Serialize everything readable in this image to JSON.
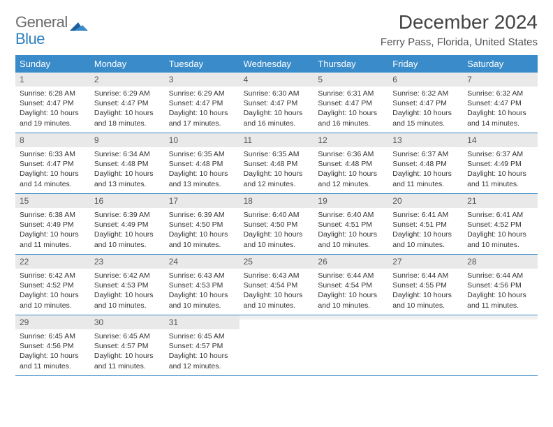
{
  "brand": {
    "line1": "General",
    "line2": "Blue",
    "line1_color": "#6b6b6b",
    "line2_color": "#2a7fbf"
  },
  "title": "December 2024",
  "location": "Ferry Pass, Florida, United States",
  "header_bg": "#3a8bc9",
  "header_text_color": "#ffffff",
  "daynum_bg": "#e9e9e9",
  "week_border_color": "#3a8bc9",
  "body_text_color": "#333333",
  "day_names": [
    "Sunday",
    "Monday",
    "Tuesday",
    "Wednesday",
    "Thursday",
    "Friday",
    "Saturday"
  ],
  "weeks": [
    [
      {
        "n": "1",
        "sr": "Sunrise: 6:28 AM",
        "ss": "Sunset: 4:47 PM",
        "d1": "Daylight: 10 hours",
        "d2": "and 19 minutes."
      },
      {
        "n": "2",
        "sr": "Sunrise: 6:29 AM",
        "ss": "Sunset: 4:47 PM",
        "d1": "Daylight: 10 hours",
        "d2": "and 18 minutes."
      },
      {
        "n": "3",
        "sr": "Sunrise: 6:29 AM",
        "ss": "Sunset: 4:47 PM",
        "d1": "Daylight: 10 hours",
        "d2": "and 17 minutes."
      },
      {
        "n": "4",
        "sr": "Sunrise: 6:30 AM",
        "ss": "Sunset: 4:47 PM",
        "d1": "Daylight: 10 hours",
        "d2": "and 16 minutes."
      },
      {
        "n": "5",
        "sr": "Sunrise: 6:31 AM",
        "ss": "Sunset: 4:47 PM",
        "d1": "Daylight: 10 hours",
        "d2": "and 16 minutes."
      },
      {
        "n": "6",
        "sr": "Sunrise: 6:32 AM",
        "ss": "Sunset: 4:47 PM",
        "d1": "Daylight: 10 hours",
        "d2": "and 15 minutes."
      },
      {
        "n": "7",
        "sr": "Sunrise: 6:32 AM",
        "ss": "Sunset: 4:47 PM",
        "d1": "Daylight: 10 hours",
        "d2": "and 14 minutes."
      }
    ],
    [
      {
        "n": "8",
        "sr": "Sunrise: 6:33 AM",
        "ss": "Sunset: 4:47 PM",
        "d1": "Daylight: 10 hours",
        "d2": "and 14 minutes."
      },
      {
        "n": "9",
        "sr": "Sunrise: 6:34 AM",
        "ss": "Sunset: 4:48 PM",
        "d1": "Daylight: 10 hours",
        "d2": "and 13 minutes."
      },
      {
        "n": "10",
        "sr": "Sunrise: 6:35 AM",
        "ss": "Sunset: 4:48 PM",
        "d1": "Daylight: 10 hours",
        "d2": "and 13 minutes."
      },
      {
        "n": "11",
        "sr": "Sunrise: 6:35 AM",
        "ss": "Sunset: 4:48 PM",
        "d1": "Daylight: 10 hours",
        "d2": "and 12 minutes."
      },
      {
        "n": "12",
        "sr": "Sunrise: 6:36 AM",
        "ss": "Sunset: 4:48 PM",
        "d1": "Daylight: 10 hours",
        "d2": "and 12 minutes."
      },
      {
        "n": "13",
        "sr": "Sunrise: 6:37 AM",
        "ss": "Sunset: 4:48 PM",
        "d1": "Daylight: 10 hours",
        "d2": "and 11 minutes."
      },
      {
        "n": "14",
        "sr": "Sunrise: 6:37 AM",
        "ss": "Sunset: 4:49 PM",
        "d1": "Daylight: 10 hours",
        "d2": "and 11 minutes."
      }
    ],
    [
      {
        "n": "15",
        "sr": "Sunrise: 6:38 AM",
        "ss": "Sunset: 4:49 PM",
        "d1": "Daylight: 10 hours",
        "d2": "and 11 minutes."
      },
      {
        "n": "16",
        "sr": "Sunrise: 6:39 AM",
        "ss": "Sunset: 4:49 PM",
        "d1": "Daylight: 10 hours",
        "d2": "and 10 minutes."
      },
      {
        "n": "17",
        "sr": "Sunrise: 6:39 AM",
        "ss": "Sunset: 4:50 PM",
        "d1": "Daylight: 10 hours",
        "d2": "and 10 minutes."
      },
      {
        "n": "18",
        "sr": "Sunrise: 6:40 AM",
        "ss": "Sunset: 4:50 PM",
        "d1": "Daylight: 10 hours",
        "d2": "and 10 minutes."
      },
      {
        "n": "19",
        "sr": "Sunrise: 6:40 AM",
        "ss": "Sunset: 4:51 PM",
        "d1": "Daylight: 10 hours",
        "d2": "and 10 minutes."
      },
      {
        "n": "20",
        "sr": "Sunrise: 6:41 AM",
        "ss": "Sunset: 4:51 PM",
        "d1": "Daylight: 10 hours",
        "d2": "and 10 minutes."
      },
      {
        "n": "21",
        "sr": "Sunrise: 6:41 AM",
        "ss": "Sunset: 4:52 PM",
        "d1": "Daylight: 10 hours",
        "d2": "and 10 minutes."
      }
    ],
    [
      {
        "n": "22",
        "sr": "Sunrise: 6:42 AM",
        "ss": "Sunset: 4:52 PM",
        "d1": "Daylight: 10 hours",
        "d2": "and 10 minutes."
      },
      {
        "n": "23",
        "sr": "Sunrise: 6:42 AM",
        "ss": "Sunset: 4:53 PM",
        "d1": "Daylight: 10 hours",
        "d2": "and 10 minutes."
      },
      {
        "n": "24",
        "sr": "Sunrise: 6:43 AM",
        "ss": "Sunset: 4:53 PM",
        "d1": "Daylight: 10 hours",
        "d2": "and 10 minutes."
      },
      {
        "n": "25",
        "sr": "Sunrise: 6:43 AM",
        "ss": "Sunset: 4:54 PM",
        "d1": "Daylight: 10 hours",
        "d2": "and 10 minutes."
      },
      {
        "n": "26",
        "sr": "Sunrise: 6:44 AM",
        "ss": "Sunset: 4:54 PM",
        "d1": "Daylight: 10 hours",
        "d2": "and 10 minutes."
      },
      {
        "n": "27",
        "sr": "Sunrise: 6:44 AM",
        "ss": "Sunset: 4:55 PM",
        "d1": "Daylight: 10 hours",
        "d2": "and 10 minutes."
      },
      {
        "n": "28",
        "sr": "Sunrise: 6:44 AM",
        "ss": "Sunset: 4:56 PM",
        "d1": "Daylight: 10 hours",
        "d2": "and 11 minutes."
      }
    ],
    [
      {
        "n": "29",
        "sr": "Sunrise: 6:45 AM",
        "ss": "Sunset: 4:56 PM",
        "d1": "Daylight: 10 hours",
        "d2": "and 11 minutes."
      },
      {
        "n": "30",
        "sr": "Sunrise: 6:45 AM",
        "ss": "Sunset: 4:57 PM",
        "d1": "Daylight: 10 hours",
        "d2": "and 11 minutes."
      },
      {
        "n": "31",
        "sr": "Sunrise: 6:45 AM",
        "ss": "Sunset: 4:57 PM",
        "d1": "Daylight: 10 hours",
        "d2": "and 12 minutes."
      },
      {
        "n": "",
        "sr": "",
        "ss": "",
        "d1": "",
        "d2": ""
      },
      {
        "n": "",
        "sr": "",
        "ss": "",
        "d1": "",
        "d2": ""
      },
      {
        "n": "",
        "sr": "",
        "ss": "",
        "d1": "",
        "d2": ""
      },
      {
        "n": "",
        "sr": "",
        "ss": "",
        "d1": "",
        "d2": ""
      }
    ]
  ]
}
